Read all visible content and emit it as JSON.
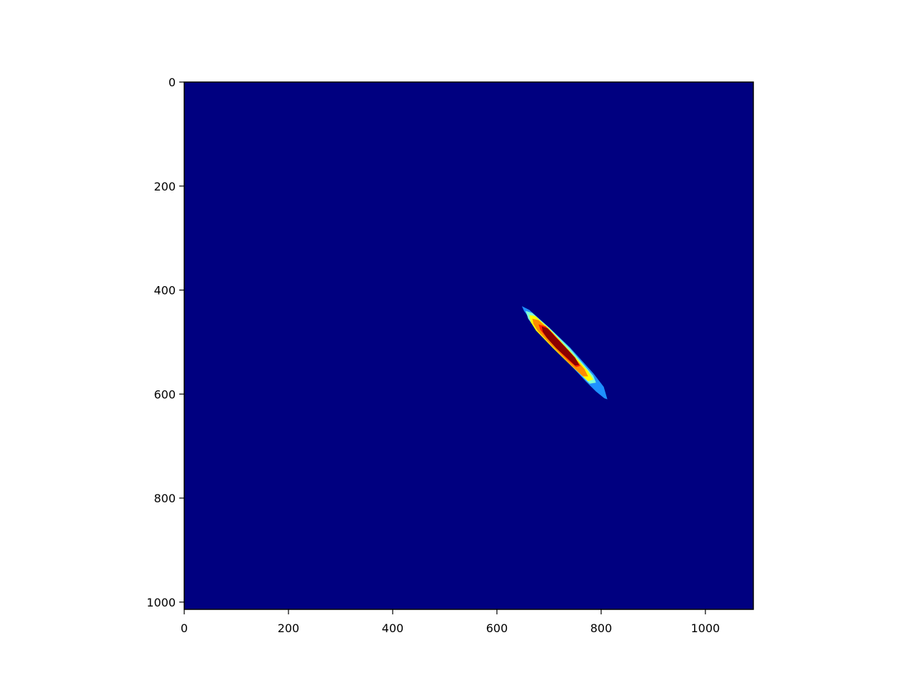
{
  "chart_data": {
    "type": "heatmap",
    "colormap": "jet",
    "background_color": "#000080",
    "x_axis": {
      "lim": [
        0,
        1092
      ],
      "ticks": [
        0,
        200,
        400,
        600,
        800,
        1000
      ],
      "tick_labels": [
        "0",
        "200",
        "400",
        "600",
        "800",
        "1000"
      ]
    },
    "y_axis": {
      "lim": [
        0,
        1014
      ],
      "inverted": true,
      "ticks": [
        0,
        200,
        400,
        600,
        800,
        1000
      ],
      "tick_labels": [
        "0",
        "200",
        "400",
        "600",
        "800",
        "1000"
      ]
    },
    "grid": false,
    "title": "",
    "xlabel": "",
    "ylabel": "",
    "levels": [
      {
        "level": 1,
        "color": "#1e90ff",
        "points": [
          [
            648,
            431
          ],
          [
            662,
            438
          ],
          [
            700,
            472
          ],
          [
            740,
            510
          ],
          [
            785,
            560
          ],
          [
            805,
            586
          ],
          [
            812,
            610
          ],
          [
            806,
            608
          ],
          [
            790,
            595
          ],
          [
            770,
            575
          ],
          [
            745,
            548
          ],
          [
            710,
            510
          ],
          [
            672,
            468
          ],
          [
            652,
            440
          ]
        ]
      },
      {
        "level": 2,
        "color": "#7fffd4",
        "points": [
          [
            655,
            440
          ],
          [
            668,
            444
          ],
          [
            700,
            472
          ],
          [
            740,
            512
          ],
          [
            785,
            565
          ],
          [
            790,
            578
          ],
          [
            778,
            580
          ],
          [
            750,
            552
          ],
          [
            710,
            512
          ],
          [
            672,
            472
          ],
          [
            660,
            455
          ]
        ]
      },
      {
        "level": 3,
        "color": "#ffff00",
        "points": [
          [
            662,
            448
          ],
          [
            674,
            450
          ],
          [
            702,
            476
          ],
          [
            738,
            515
          ],
          [
            775,
            556
          ],
          [
            785,
            572
          ],
          [
            775,
            575
          ],
          [
            745,
            548
          ],
          [
            708,
            512
          ],
          [
            675,
            478
          ],
          [
            665,
            462
          ]
        ]
      },
      {
        "level": 4,
        "color": "#ff8c00",
        "points": [
          [
            668,
            455
          ],
          [
            680,
            458
          ],
          [
            704,
            480
          ],
          [
            736,
            515
          ],
          [
            768,
            552
          ],
          [
            775,
            566
          ],
          [
            765,
            566
          ],
          [
            738,
            540
          ],
          [
            706,
            508
          ],
          [
            678,
            478
          ],
          [
            670,
            465
          ]
        ]
      },
      {
        "level": 5,
        "color": "#ff2000",
        "points": [
          [
            680,
            466
          ],
          [
            694,
            470
          ],
          [
            708,
            484
          ],
          [
            726,
            504
          ],
          [
            748,
            528
          ],
          [
            760,
            546
          ],
          [
            752,
            548
          ],
          [
            736,
            534
          ],
          [
            714,
            512
          ],
          [
            694,
            490
          ],
          [
            683,
            476
          ]
        ]
      },
      {
        "level": 6,
        "color": "#8b0000",
        "points": [
          [
            686,
            470
          ],
          [
            698,
            474
          ],
          [
            712,
            490
          ],
          [
            730,
            508
          ],
          [
            750,
            530
          ],
          [
            758,
            544
          ],
          [
            750,
            545
          ],
          [
            734,
            530
          ],
          [
            714,
            512
          ],
          [
            696,
            492
          ],
          [
            688,
            480
          ]
        ]
      }
    ]
  }
}
